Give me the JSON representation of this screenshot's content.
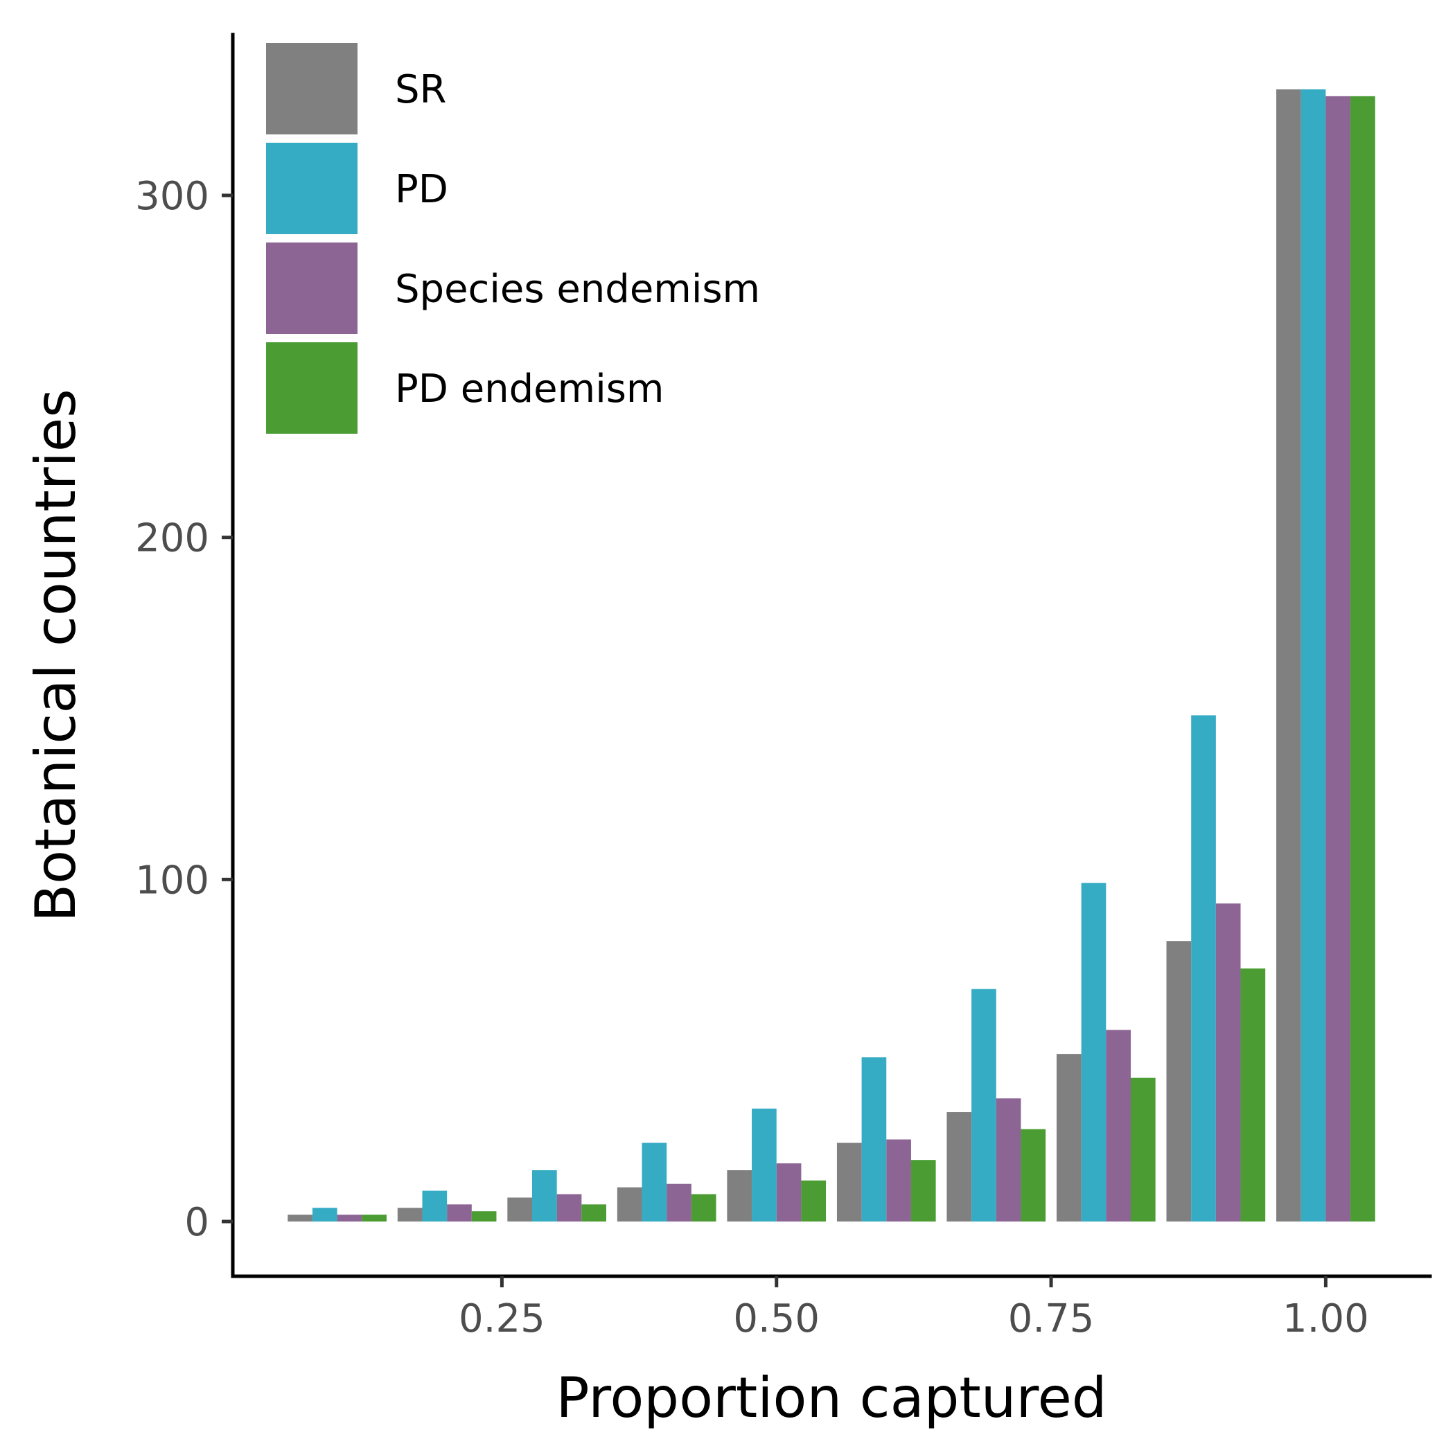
{
  "chart_data": {
    "type": "bar",
    "title": "",
    "xlabel": "Proportion captured",
    "ylabel": "Botanical countries",
    "x": [
      0.1,
      0.2,
      0.3,
      0.4,
      0.5,
      0.6,
      0.7,
      0.8,
      0.9,
      1.0
    ],
    "xticks": [
      0.25,
      0.5,
      0.75,
      1.0
    ],
    "xtick_labels": [
      "0.25",
      "0.50",
      "0.75",
      "1.00"
    ],
    "xlim": [
      0.005,
      1.095
    ],
    "yticks": [
      0,
      100,
      200,
      300
    ],
    "ytick_labels": [
      "0",
      "100",
      "200",
      "300"
    ],
    "ylim": [
      -16,
      347
    ],
    "grid": false,
    "legend_position": "top-left",
    "series": [
      {
        "name": "SR",
        "color": "#808080",
        "values": [
          2,
          4,
          7,
          10,
          15,
          23,
          32,
          49,
          82,
          331
        ]
      },
      {
        "name": "PD",
        "color": "#35abc4",
        "values": [
          4,
          9,
          15,
          23,
          33,
          48,
          68,
          99,
          148,
          331
        ]
      },
      {
        "name": "Species endemism",
        "color": "#8c6595",
        "values": [
          2,
          5,
          8,
          11,
          17,
          24,
          36,
          56,
          93,
          329
        ]
      },
      {
        "name": "PD endemism",
        "color": "#4a9c33",
        "values": [
          2,
          3,
          5,
          8,
          12,
          18,
          27,
          42,
          74,
          329
        ]
      }
    ]
  }
}
